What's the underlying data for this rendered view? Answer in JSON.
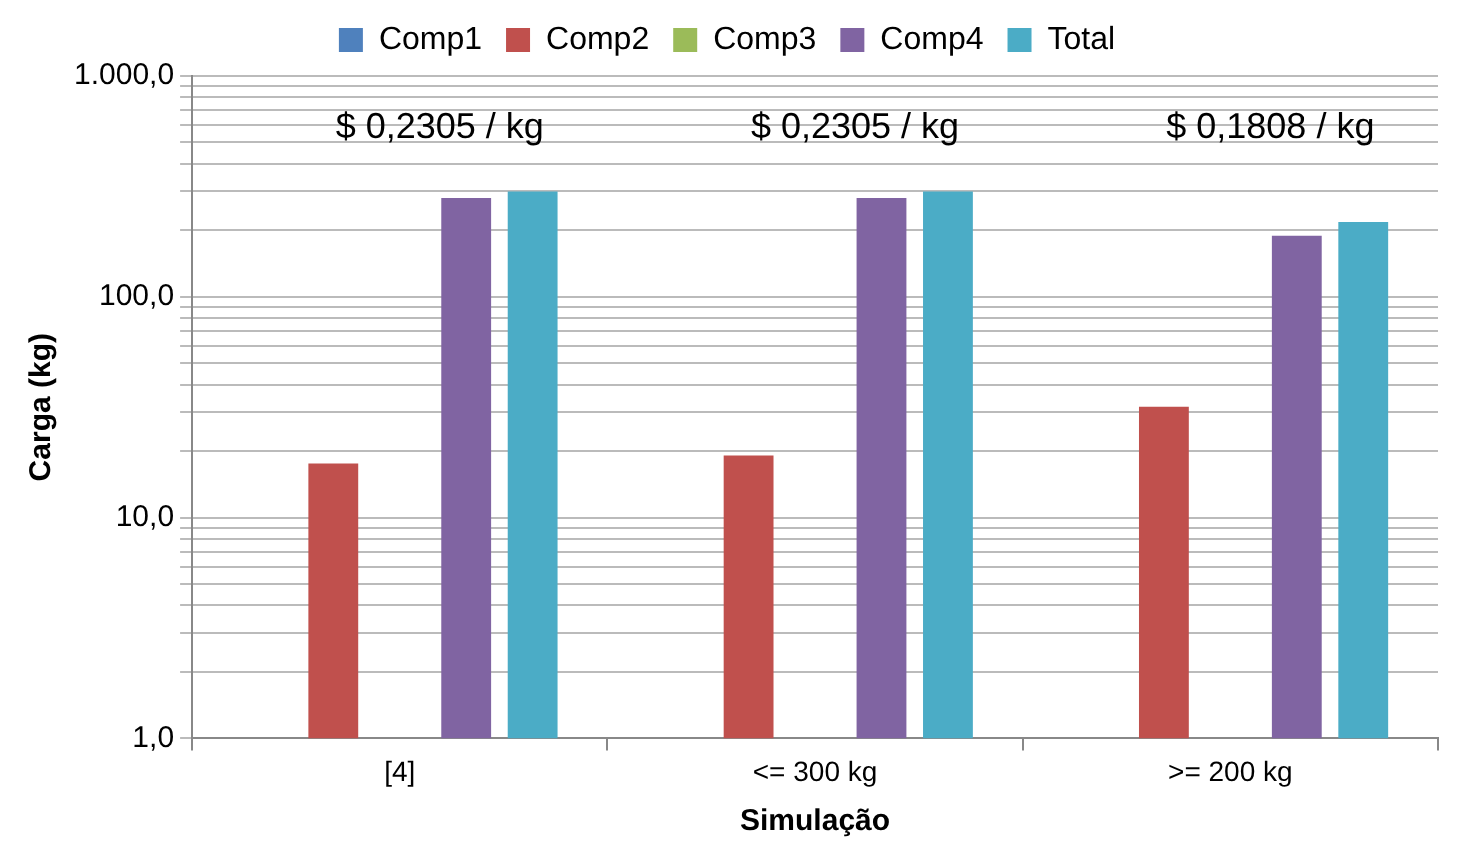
{
  "chart_data": {
    "type": "bar",
    "xlabel": "Simulação",
    "ylabel": "Carga (kg)",
    "categories": [
      "[4]",
      "<= 300 kg",
      ">= 200 kg"
    ],
    "series": [
      {
        "name": "Comp1",
        "color": "#4f81bd",
        "values": [
          null,
          null,
          null
        ]
      },
      {
        "name": "Comp2",
        "color": "#c0504d",
        "values": [
          17.6,
          19.1,
          31.8
        ]
      },
      {
        "name": "Comp3",
        "color": "#9bbb59",
        "values": [
          null,
          null,
          null
        ]
      },
      {
        "name": "Comp4",
        "color": "#8064a2",
        "values": [
          280,
          280,
          189
        ]
      },
      {
        "name": "Total",
        "color": "#4bacc6",
        "values": [
          300,
          300,
          218
        ]
      }
    ],
    "log": "y",
    "ylim": [
      1,
      1000
    ],
    "yticks": [
      {
        "value": 1,
        "label": "1,0"
      },
      {
        "value": 2,
        "label": null
      },
      {
        "value": 3,
        "label": null
      },
      {
        "value": 4,
        "label": null
      },
      {
        "value": 5,
        "label": null
      },
      {
        "value": 6,
        "label": null
      },
      {
        "value": 7,
        "label": null
      },
      {
        "value": 8,
        "label": null
      },
      {
        "value": 9,
        "label": null
      },
      {
        "value": 10,
        "label": "10,0"
      },
      {
        "value": 20,
        "label": null
      },
      {
        "value": 30,
        "label": null
      },
      {
        "value": 40,
        "label": null
      },
      {
        "value": 50,
        "label": null
      },
      {
        "value": 60,
        "label": null
      },
      {
        "value": 70,
        "label": null
      },
      {
        "value": 80,
        "label": null
      },
      {
        "value": 90,
        "label": null
      },
      {
        "value": 100,
        "label": "100,0"
      },
      {
        "value": 200,
        "label": null
      },
      {
        "value": 300,
        "label": null
      },
      {
        "value": 400,
        "label": null
      },
      {
        "value": 500,
        "label": null
      },
      {
        "value": 600,
        "label": null
      },
      {
        "value": 700,
        "label": null
      },
      {
        "value": 800,
        "label": null
      },
      {
        "value": 900,
        "label": null
      },
      {
        "value": 1000,
        "label": "1.000,0"
      }
    ],
    "annotations": [
      "$ 0,2305 / kg",
      "$ 0,2305 / kg",
      "$ 0,1808 / kg"
    ],
    "grid": "y",
    "legend": "top"
  }
}
